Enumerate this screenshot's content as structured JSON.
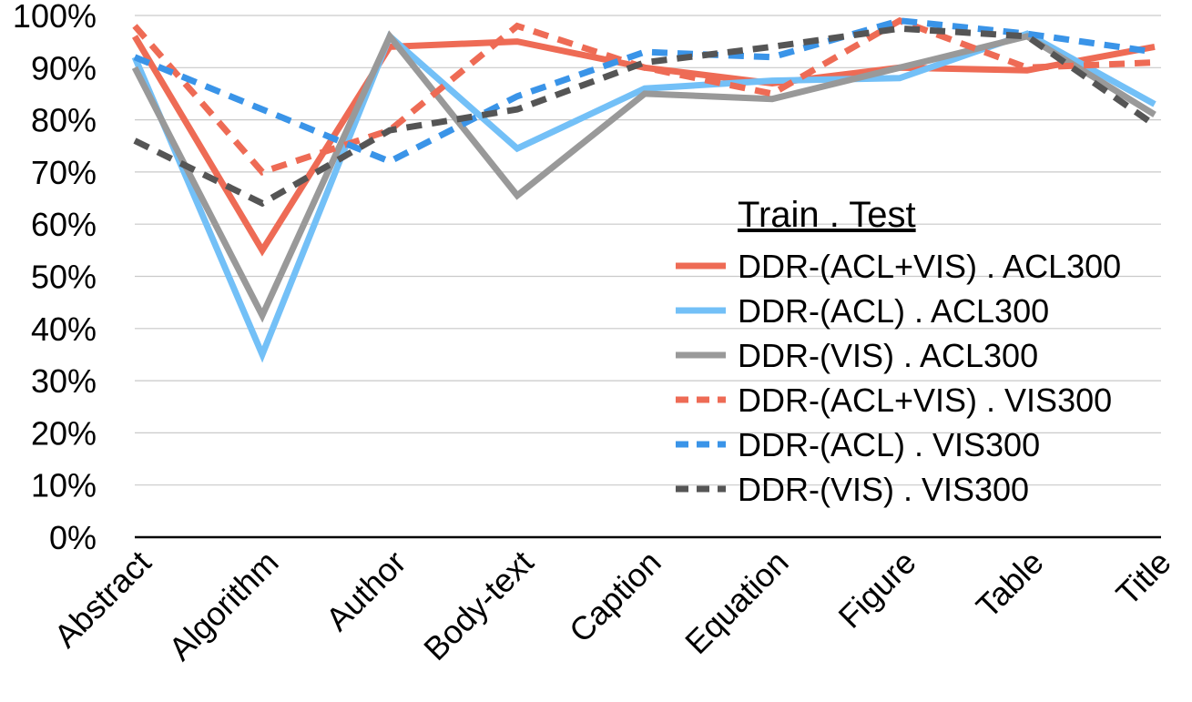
{
  "chart_data": {
    "type": "line",
    "title": "",
    "xlabel": "",
    "ylabel": "",
    "ylim": [
      0,
      100
    ],
    "y_ticks": [
      "0%",
      "10%",
      "20%",
      "30%",
      "40%",
      "50%",
      "60%",
      "70%",
      "80%",
      "90%",
      "100%"
    ],
    "grid": true,
    "legend_position": "center-right",
    "legend_title": "Train . Test",
    "categories": [
      "Abstract",
      "Algorithm",
      "Author",
      "Body-text",
      "Caption",
      "Equation",
      "Figure",
      "Table",
      "Title"
    ],
    "series": [
      {
        "name": "DDR-(ACL+VIS) . ACL300",
        "color": "#ee6b55",
        "dash": "solid",
        "values": [
          96,
          55,
          94,
          95,
          90,
          87,
          90,
          89.5,
          94
        ]
      },
      {
        "name": "DDR-(ACL) . ACL300",
        "color": "#73c0f7",
        "dash": "solid",
        "values": [
          92,
          35,
          96,
          74.5,
          86,
          87.5,
          88,
          96.5,
          83
        ]
      },
      {
        "name": "DDR-(VIS) . ACL300",
        "color": "#999999",
        "dash": "solid",
        "values": [
          90,
          42.5,
          96,
          65.5,
          85,
          84,
          90,
          96,
          81
        ]
      },
      {
        "name": "DDR-(ACL+VIS) . VIS300",
        "color": "#ee6b55",
        "dash": "dashed",
        "values": [
          98,
          70,
          78,
          98,
          90,
          85,
          99,
          90,
          91
        ]
      },
      {
        "name": "DDR-(ACL) . VIS300",
        "color": "#3a94e8",
        "dash": "dashed",
        "values": [
          92,
          82,
          72,
          84.5,
          93,
          92,
          99,
          96.5,
          93
        ]
      },
      {
        "name": "DDR-(VIS) . VIS300",
        "color": "#555555",
        "dash": "dashed",
        "values": [
          76,
          64,
          78,
          82,
          91,
          94,
          97.5,
          96,
          79
        ]
      }
    ]
  }
}
